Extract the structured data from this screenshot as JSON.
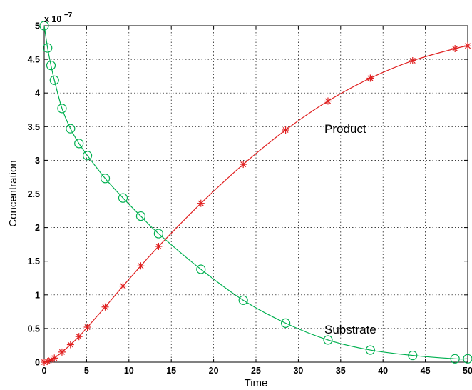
{
  "chart_data": {
    "type": "line",
    "xlabel": "Time",
    "ylabel": "Concentration",
    "xlim": [
      0,
      50
    ],
    "ylim": [
      0,
      5
    ],
    "y_scale_label": "x 10",
    "y_scale_exponent": "−7",
    "grid": true,
    "x_ticks": [
      "0",
      "5",
      "10",
      "15",
      "20",
      "25",
      "30",
      "35",
      "40",
      "45",
      "50"
    ],
    "y_ticks": [
      "0",
      "0.5",
      "1",
      "1.5",
      "2",
      "2.5",
      "3",
      "3.5",
      "4",
      "4.5",
      "5"
    ],
    "annotations": [
      "Product",
      "Substrate"
    ],
    "series": [
      {
        "name": "Substrate",
        "color": "#00b050",
        "marker": "circle",
        "x": [
          0,
          0.4,
          0.8,
          1.2,
          2.1,
          3.1,
          4.1,
          5.1,
          7.2,
          9.3,
          11.4,
          13.5,
          18.5,
          23.5,
          28.5,
          33.5,
          38.5,
          43.5,
          48.5,
          50
        ],
        "values": [
          5.0,
          4.67,
          4.41,
          4.19,
          3.77,
          3.47,
          3.25,
          3.07,
          2.73,
          2.44,
          2.17,
          1.91,
          1.38,
          0.92,
          0.58,
          0.33,
          0.18,
          0.1,
          0.05,
          0.05
        ]
      },
      {
        "name": "Product",
        "color": "#e02020",
        "marker": "asterisk",
        "x": [
          0,
          0.4,
          0.8,
          1.2,
          2.1,
          3.1,
          4.1,
          5.1,
          7.2,
          9.3,
          11.4,
          13.5,
          18.5,
          23.5,
          28.5,
          33.5,
          38.5,
          43.5,
          48.5,
          50
        ],
        "values": [
          0.0,
          0.01,
          0.03,
          0.06,
          0.15,
          0.26,
          0.38,
          0.52,
          0.82,
          1.13,
          1.43,
          1.72,
          2.36,
          2.94,
          3.45,
          3.88,
          4.22,
          4.48,
          4.66,
          4.7
        ]
      }
    ]
  }
}
